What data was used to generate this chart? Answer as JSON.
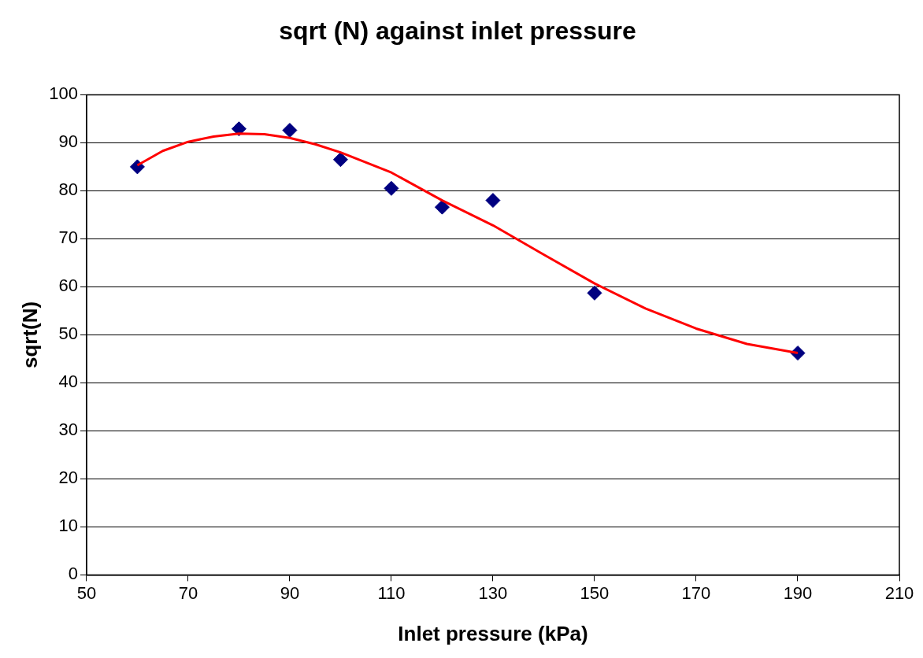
{
  "chart_data": {
    "type": "scatter",
    "title": "sqrt (N) against inlet pressure",
    "xlabel": "Inlet pressure (kPa)",
    "ylabel": "sqrt(N)",
    "xlim": [
      50,
      210
    ],
    "xticks": [
      50,
      70,
      90,
      110,
      130,
      150,
      170,
      190,
      210
    ],
    "ylim": [
      0,
      100
    ],
    "yticks": [
      0,
      10,
      20,
      30,
      40,
      50,
      60,
      70,
      80,
      90,
      100
    ],
    "grid": "y",
    "legend": false,
    "series": [
      {
        "color": "#000080",
        "marker": "diamond",
        "x": [
          60,
          80,
          90,
          100,
          110,
          120,
          130,
          150,
          190
        ],
        "values": [
          85,
          92.9,
          92.6,
          86.5,
          80.5,
          76.6,
          78,
          58.7,
          46.2
        ]
      },
      {
        "type": "line",
        "color": "#ff0000",
        "marker": "none",
        "x": [
          60,
          65,
          70,
          75,
          80,
          85,
          90,
          95,
          100,
          110,
          120,
          130,
          140,
          150,
          160,
          170,
          180,
          190
        ],
        "values": [
          85.3,
          88.3,
          90.2,
          91.3,
          91.9,
          91.8,
          91.0,
          89.7,
          88.0,
          83.8,
          78,
          72.8,
          66.7,
          60.7,
          55.5,
          51.3,
          48.1,
          46.2
        ]
      }
    ]
  }
}
